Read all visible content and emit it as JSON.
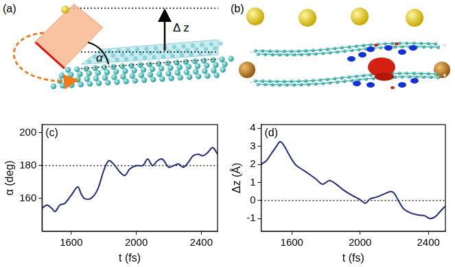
{
  "panels": {
    "a": {
      "label": "(a)",
      "height_label": "Δ z",
      "angle_label": "α"
    },
    "b": {
      "label": "(b)"
    }
  },
  "chart_data": [
    {
      "type": "line",
      "panel_label": "(c)",
      "x_label": "t (fs)",
      "y_label": "α (deg)",
      "x": [
        1420,
        1450,
        1480,
        1500,
        1530,
        1560,
        1600,
        1640,
        1660,
        1680,
        1720,
        1760,
        1800,
        1830,
        1860,
        1900,
        1930,
        1960,
        2000,
        2040,
        2070,
        2100,
        2130,
        2160,
        2200,
        2230,
        2260,
        2290,
        2320,
        2350,
        2380,
        2410,
        2440,
        2470,
        2500
      ],
      "values": [
        154,
        156,
        154,
        152,
        156,
        157,
        162,
        167,
        163,
        160,
        160,
        165,
        177,
        183,
        181,
        176,
        174,
        178,
        180,
        180,
        184,
        180,
        183,
        184,
        179,
        180,
        181,
        179,
        182,
        186,
        187,
        186,
        188,
        191,
        187
      ],
      "color": "#1b2a7a",
      "xlim": [
        1420,
        2500
      ],
      "xticks": [
        1600,
        2000,
        2400
      ],
      "ylim": [
        140,
        205
      ],
      "yticks": [
        160,
        180,
        200
      ],
      "reference_line": {
        "value": 180,
        "line_style": "dotted"
      },
      "grid": false
    },
    {
      "type": "line",
      "panel_label": "(d)",
      "x_label": "t (fs)",
      "y_label": "Δz (Å)",
      "x": [
        1420,
        1450,
        1480,
        1510,
        1530,
        1550,
        1580,
        1620,
        1680,
        1740,
        1780,
        1820,
        1860,
        1900,
        1950,
        2000,
        2030,
        2060,
        2100,
        2150,
        2180,
        2200,
        2230,
        2260,
        2300,
        2340,
        2380,
        2410,
        2440,
        2470,
        2500
      ],
      "values": [
        2.0,
        2.2,
        2.6,
        3.0,
        3.25,
        3.1,
        2.6,
        2.0,
        1.6,
        1.2,
        0.9,
        1.1,
        0.9,
        0.6,
        0.3,
        0.05,
        -0.15,
        0.1,
        0.2,
        0.4,
        0.5,
        0.4,
        -0.1,
        -0.5,
        -0.7,
        -0.8,
        -0.85,
        -1.0,
        -0.9,
        -0.6,
        -0.3
      ],
      "color": "#1b2a7a",
      "xlim": [
        1420,
        2500
      ],
      "xticks": [
        1600,
        2000,
        2400
      ],
      "ylim": [
        -1.7,
        4.2
      ],
      "yticks": [
        -1,
        0,
        1,
        2,
        3,
        4
      ],
      "reference_line": {
        "value": 0,
        "line_style": "dotted"
      },
      "grid": false
    }
  ]
}
